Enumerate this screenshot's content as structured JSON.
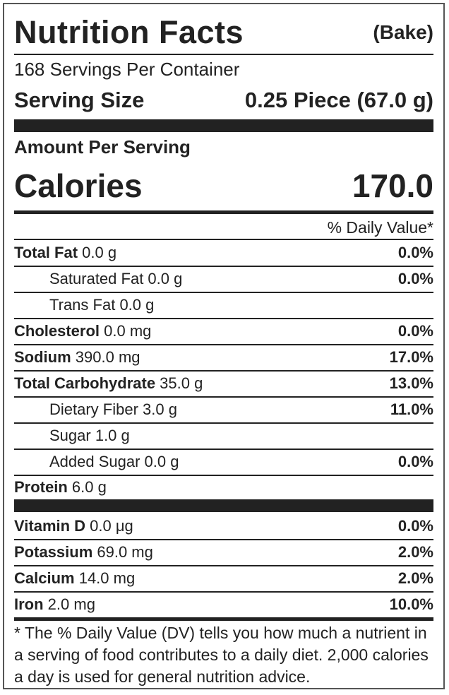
{
  "header": {
    "title": "Nutrition Facts",
    "variant": "(Bake)"
  },
  "servings_per_container": "168 Servings Per Container",
  "serving_size": {
    "label": "Serving Size",
    "value": "0.25 Piece (67.0 g)"
  },
  "amount_per_serving": "Amount Per Serving",
  "calories": {
    "label": "Calories",
    "value": "170.0"
  },
  "dv_header": "% Daily Value*",
  "nutrients": [
    {
      "name": "Total Fat",
      "amount": " 0.0 g",
      "dv": "0.0%"
    },
    {
      "name": "Saturated Fat",
      "amount": " 0.0 g",
      "dv": "0.0%"
    },
    {
      "name": "Trans Fat",
      "amount": " 0.0 g",
      "dv": ""
    },
    {
      "name": "Cholesterol",
      "amount": " 0.0 mg",
      "dv": "0.0%"
    },
    {
      "name": "Sodium",
      "amount": " 390.0 mg",
      "dv": "17.0%"
    },
    {
      "name": "Total Carbohydrate",
      "amount": " 35.0 g",
      "dv": "13.0%"
    },
    {
      "name": "Dietary Fiber",
      "amount": " 3.0 g",
      "dv": "11.0%"
    },
    {
      "name": "Sugar",
      "amount": " 1.0 g",
      "dv": ""
    },
    {
      "name": "Added Sugar",
      "amount": " 0.0 g",
      "dv": "0.0%"
    },
    {
      "name": "Protein",
      "amount": " 6.0 g",
      "dv": ""
    }
  ],
  "vitamins": [
    {
      "name": "Vitamin D",
      "amount": " 0.0 μg",
      "dv": "0.0%"
    },
    {
      "name": "Potassium",
      "amount": " 69.0 mg",
      "dv": "2.0%"
    },
    {
      "name": "Calcium",
      "amount": " 14.0 mg",
      "dv": "2.0%"
    },
    {
      "name": "Iron",
      "amount": " 2.0 mg",
      "dv": "10.0%"
    }
  ],
  "footnote": "* The % Daily Value (DV) tells you how much a nutrient in a serving of food contributes to a daily diet. 2,000 calories a day is used for general nutrition advice."
}
